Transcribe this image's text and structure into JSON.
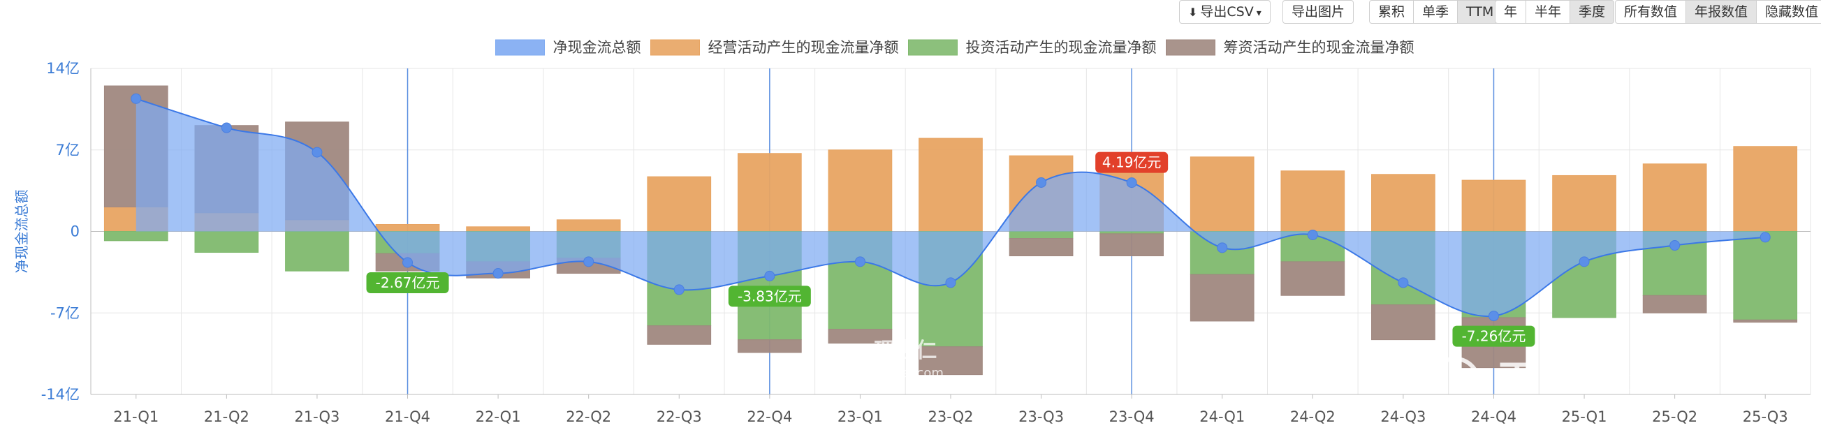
{
  "toolbar": {
    "export_csv": "导出CSV",
    "export_image": "导出图片",
    "mode": [
      "累积",
      "单季",
      "TTM"
    ],
    "mode_active": 2,
    "period": [
      "年",
      "半年",
      "季度"
    ],
    "period_active": 2,
    "value_mode": [
      "所有数值",
      "年报数值",
      "隐藏数值"
    ],
    "value_mode_active": 1
  },
  "watermark": {
    "lixinger_cn": "理杏仁",
    "lixinger_url": "lixinger.com",
    "xueqiu": "雪球：猫丙"
  },
  "chart_data": {
    "type": "bar",
    "ylabel": "净现金流总额",
    "ylim": [
      -14,
      14
    ],
    "yticks": [
      -14,
      -7,
      0,
      7,
      14
    ],
    "ytick_labels": [
      "-14亿",
      "-7亿",
      "0",
      "7亿",
      "14亿"
    ],
    "categories": [
      "21-Q1",
      "21-Q2",
      "21-Q3",
      "21-Q4",
      "22-Q1",
      "22-Q2",
      "22-Q3",
      "22-Q4",
      "23-Q1",
      "23-Q2",
      "23-Q3",
      "23-Q4",
      "24-Q1",
      "24-Q2",
      "24-Q3",
      "24-Q4",
      "25-Q1",
      "25-Q2",
      "25-Q3"
    ],
    "legend_position": "top-center",
    "series": [
      {
        "name": "净现金流总额",
        "type": "area",
        "color": "#7eaaf2",
        "values": [
          11.4,
          8.9,
          6.8,
          -2.67,
          -3.6,
          -2.6,
          -5.0,
          -3.83,
          -2.6,
          -4.4,
          4.2,
          4.19,
          -1.4,
          -0.3,
          -4.4,
          -7.26,
          -2.6,
          -1.2,
          -0.5
        ]
      },
      {
        "name": "经营活动产生的现金流量净额",
        "type": "bar",
        "color": "#e8a462",
        "values": [
          2.1,
          1.6,
          1.0,
          0.6,
          0.4,
          1.0,
          4.7,
          6.7,
          7.0,
          8.0,
          6.5,
          6.3,
          6.4,
          5.2,
          4.9,
          4.4,
          4.8,
          5.8,
          7.3
        ]
      },
      {
        "name": "投资活动产生的现金流量净额",
        "type": "bar",
        "color": "#80b96e",
        "values": [
          -0.8,
          -1.8,
          -3.4,
          -1.9,
          -2.6,
          -2.3,
          -8.1,
          -9.3,
          -8.4,
          -9.9,
          -0.6,
          -0.2,
          -3.7,
          -2.6,
          -6.3,
          -7.4,
          -7.4,
          -5.5,
          -7.6
        ]
      },
      {
        "name": "筹资活动产生的现金流量净额",
        "type": "bar",
        "color": "#a08880",
        "values": [
          10.4,
          7.5,
          8.4,
          -1.5,
          -1.4,
          -1.3,
          -1.6,
          -1.1,
          -1.2,
          -2.4,
          -1.5,
          -1.9,
          -4.0,
          -2.9,
          -3.0,
          -4.3,
          0.0,
          -1.5,
          -0.2
        ]
      }
    ],
    "callouts": [
      {
        "index": 3,
        "text": "-2.67亿元",
        "color": "#52b532"
      },
      {
        "index": 7,
        "text": "-3.83亿元",
        "color": "#52b532"
      },
      {
        "index": 11,
        "text": "4.19亿元",
        "color": "#e2402a"
      },
      {
        "index": 15,
        "text": "-7.26亿元",
        "color": "#52b532"
      }
    ],
    "vlines_at": [
      3,
      7,
      11,
      15
    ]
  }
}
